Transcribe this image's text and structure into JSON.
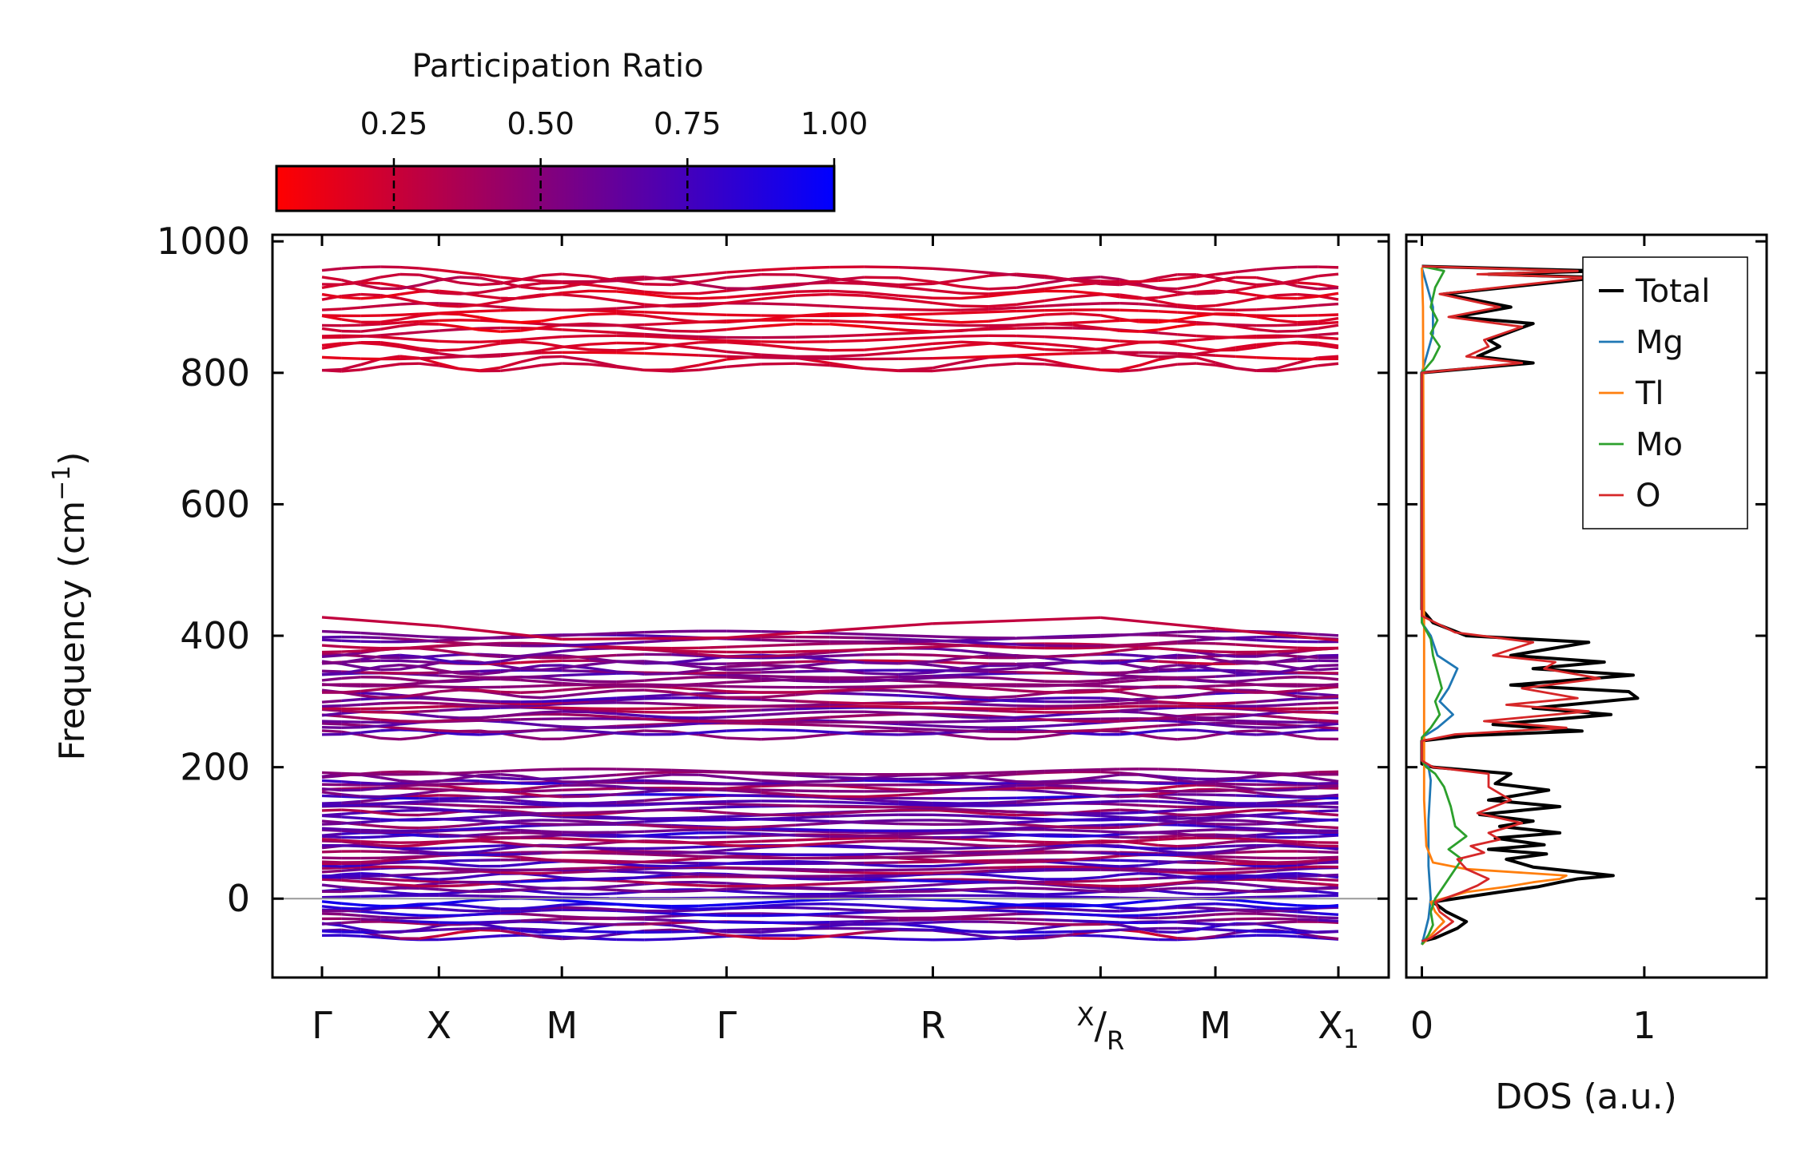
{
  "chart_data": [
    {
      "type": "line",
      "subtype": "phonon-band-structure",
      "ylabel_main": "Frequency (cm",
      "ylabel_sup": "−1",
      "ylabel_end": ")",
      "ylim": [
        -120,
        1010
      ],
      "yticks": [
        0,
        200,
        400,
        600,
        800,
        1000
      ],
      "xticks": [
        {
          "label": "Γ"
        },
        {
          "label": "X"
        },
        {
          "label": "M"
        },
        {
          "label": "Γ"
        },
        {
          "label": "R"
        },
        {
          "label_sup": "X",
          "label_slash": "/",
          "label_sub": "R"
        },
        {
          "label": "M"
        },
        {
          "label_main": "X",
          "label_sub": "1"
        }
      ],
      "k_positions": [
        0,
        0.115,
        0.236,
        0.398,
        0.601,
        0.766,
        0.879,
        1.0
      ],
      "colorbar": {
        "title": "Participation Ratio",
        "ticks": [
          "0.25",
          "0.50",
          "0.75",
          "1.00"
        ],
        "tick_values": [
          0.25,
          0.5,
          0.75,
          1.0
        ],
        "range": [
          0.05,
          1.0
        ],
        "color_low": "#ff0000",
        "color_high": "#0000ff"
      },
      "bands_summary": [
        {
          "range": [
            800,
            960
          ],
          "participation": 0.15
        },
        {
          "range": [
            245,
            435
          ],
          "participation": 0.45
        },
        {
          "range": [
            0,
            200
          ],
          "participation": 0.6
        },
        {
          "range": [
            -70,
            15
          ],
          "participation": 0.55
        }
      ],
      "zero_line": 0
    },
    {
      "type": "line",
      "subtype": "density-of-states",
      "xlabel": "DOS (a.u.)",
      "xlim": [
        -0.07,
        1.55
      ],
      "xticks": [
        0,
        1
      ],
      "ylim": [
        -120,
        1010
      ],
      "legend_position": "top-right",
      "series": [
        {
          "name": "Total",
          "color": "#000000",
          "points": [
            [
              0,
              -65
            ],
            [
              0.06,
              -60
            ],
            [
              0.16,
              -45
            ],
            [
              0.2,
              -35
            ],
            [
              0.11,
              -20
            ],
            [
              0.05,
              -5
            ],
            [
              0.35,
              10
            ],
            [
              0.52,
              18
            ],
            [
              0.62,
              25
            ],
            [
              0.7,
              30
            ],
            [
              0.86,
              35
            ],
            [
              0.5,
              48
            ],
            [
              0.38,
              60
            ],
            [
              0.56,
              68
            ],
            [
              0.3,
              75
            ],
            [
              0.55,
              82
            ],
            [
              0.33,
              92
            ],
            [
              0.62,
              100
            ],
            [
              0.35,
              110
            ],
            [
              0.5,
              118
            ],
            [
              0.26,
              128
            ],
            [
              0.62,
              140
            ],
            [
              0.3,
              150
            ],
            [
              0.57,
              165
            ],
            [
              0.33,
              175
            ],
            [
              0.4,
              190
            ],
            [
              0.05,
              200
            ],
            [
              0,
              205
            ],
            [
              0,
              240
            ],
            [
              0.2,
              248
            ],
            [
              0.72,
              255
            ],
            [
              0.32,
              265
            ],
            [
              0.85,
              280
            ],
            [
              0.5,
              290
            ],
            [
              0.97,
              305
            ],
            [
              0.93,
              315
            ],
            [
              0.4,
              325
            ],
            [
              0.95,
              340
            ],
            [
              0.5,
              350
            ],
            [
              0.82,
              360
            ],
            [
              0.4,
              370
            ],
            [
              0.75,
              390
            ],
            [
              0.2,
              400
            ],
            [
              0.05,
              420
            ],
            [
              0,
              440
            ],
            [
              0,
              800
            ],
            [
              0.5,
              815
            ],
            [
              0.25,
              825
            ],
            [
              0.35,
              840
            ],
            [
              0.3,
              850
            ],
            [
              0.5,
              875
            ],
            [
              0.15,
              885
            ],
            [
              0.4,
              900
            ],
            [
              0.1,
              920
            ],
            [
              0.8,
              945
            ],
            [
              0.3,
              950
            ],
            [
              0.8,
              955
            ],
            [
              0,
              962
            ]
          ]
        },
        {
          "name": "Mg",
          "color": "#1f77b4",
          "points": [
            [
              0,
              -70
            ],
            [
              0.03,
              -30
            ],
            [
              0.04,
              0
            ],
            [
              0.03,
              50
            ],
            [
              0.03,
              120
            ],
            [
              0.04,
              180
            ],
            [
              0.03,
              200
            ],
            [
              0,
              210
            ],
            [
              0,
              245
            ],
            [
              0.07,
              260
            ],
            [
              0.14,
              280
            ],
            [
              0.08,
              300
            ],
            [
              0.12,
              320
            ],
            [
              0.16,
              350
            ],
            [
              0.07,
              370
            ],
            [
              0.04,
              400
            ],
            [
              0,
              420
            ],
            [
              0,
              800
            ],
            [
              0.05,
              860
            ],
            [
              0.05,
              900
            ],
            [
              0,
              960
            ]
          ]
        },
        {
          "name": "Tl",
          "color": "#ff7f0e",
          "points": [
            [
              0,
              -70
            ],
            [
              0.03,
              -60
            ],
            [
              0.07,
              -45
            ],
            [
              0.1,
              -35
            ],
            [
              0.06,
              -20
            ],
            [
              0.04,
              -5
            ],
            [
              0.2,
              10
            ],
            [
              0.38,
              18
            ],
            [
              0.5,
              25
            ],
            [
              0.62,
              30
            ],
            [
              0.65,
              35
            ],
            [
              0.2,
              45
            ],
            [
              0.05,
              55
            ],
            [
              0.02,
              80
            ],
            [
              0.01,
              150
            ],
            [
              0.01,
              220
            ],
            [
              0.01,
              350
            ],
            [
              0.01,
              420
            ],
            [
              0.005,
              900
            ],
            [
              0,
              960
            ]
          ]
        },
        {
          "name": "Mo",
          "color": "#2ca02c",
          "points": [
            [
              0,
              -70
            ],
            [
              0.03,
              -55
            ],
            [
              0.05,
              -40
            ],
            [
              0.04,
              -20
            ],
            [
              0.06,
              0
            ],
            [
              0.1,
              20
            ],
            [
              0.15,
              45
            ],
            [
              0.18,
              60
            ],
            [
              0.12,
              75
            ],
            [
              0.2,
              95
            ],
            [
              0.15,
              110
            ],
            [
              0.13,
              140
            ],
            [
              0.1,
              170
            ],
            [
              0.06,
              190
            ],
            [
              0.02,
              200
            ],
            [
              0,
              210
            ],
            [
              0,
              245
            ],
            [
              0.04,
              260
            ],
            [
              0.08,
              280
            ],
            [
              0.06,
              300
            ],
            [
              0.09,
              320
            ],
            [
              0.07,
              345
            ],
            [
              0.05,
              370
            ],
            [
              0.04,
              395
            ],
            [
              0,
              420
            ],
            [
              0,
              800
            ],
            [
              0.05,
              820
            ],
            [
              0.08,
              840
            ],
            [
              0.04,
              860
            ],
            [
              0.07,
              880
            ],
            [
              0.04,
              900
            ],
            [
              0.06,
              930
            ],
            [
              0.1,
              955
            ],
            [
              0,
              962
            ]
          ]
        },
        {
          "name": "O",
          "color": "#d62728",
          "points": [
            [
              0,
              -65
            ],
            [
              0.04,
              -60
            ],
            [
              0.1,
              -45
            ],
            [
              0.14,
              -35
            ],
            [
              0.08,
              -20
            ],
            [
              0.06,
              -5
            ],
            [
              0.18,
              10
            ],
            [
              0.25,
              20
            ],
            [
              0.3,
              30
            ],
            [
              0.2,
              45
            ],
            [
              0.16,
              60
            ],
            [
              0.28,
              70
            ],
            [
              0.22,
              80
            ],
            [
              0.35,
              90
            ],
            [
              0.3,
              100
            ],
            [
              0.45,
              115
            ],
            [
              0.25,
              130
            ],
            [
              0.4,
              150
            ],
            [
              0.3,
              170
            ],
            [
              0.3,
              190
            ],
            [
              0.05,
              200
            ],
            [
              0,
              210
            ],
            [
              0,
              240
            ],
            [
              0.15,
              250
            ],
            [
              0.65,
              260
            ],
            [
              0.28,
              270
            ],
            [
              0.75,
              285
            ],
            [
              0.38,
              295
            ],
            [
              0.7,
              305
            ],
            [
              0.45,
              320
            ],
            [
              0.8,
              335
            ],
            [
              0.55,
              350
            ],
            [
              0.6,
              360
            ],
            [
              0.32,
              370
            ],
            [
              0.5,
              390
            ],
            [
              0.15,
              405
            ],
            [
              0,
              430
            ],
            [
              0,
              800
            ],
            [
              0.45,
              815
            ],
            [
              0.2,
              825
            ],
            [
              0.3,
              840
            ],
            [
              0.28,
              850
            ],
            [
              0.45,
              870
            ],
            [
              0.12,
              885
            ],
            [
              0.35,
              900
            ],
            [
              0.08,
              920
            ],
            [
              0.75,
              945
            ],
            [
              0.25,
              950
            ],
            [
              0.7,
              955
            ],
            [
              0,
              962
            ]
          ]
        }
      ]
    }
  ]
}
